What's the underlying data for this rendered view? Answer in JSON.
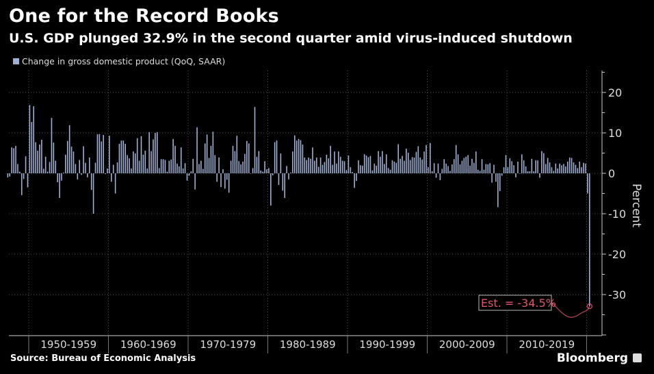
{
  "chart_data": {
    "type": "bar",
    "title": "One for the Record Books",
    "subtitle": "U.S. GDP plunged 32.9% in the second quarter amid virus-induced shutdown",
    "legend": [
      "Change in gross domestic product (QoQ, SAAR)"
    ],
    "legend_placement": "top-left",
    "ylabel": "Percent",
    "ylim": [
      -40,
      25
    ],
    "yticks": [
      "20",
      "10",
      "0",
      "-10",
      "-20",
      "-30"
    ],
    "y_axis_side": "right",
    "grid": true,
    "x_start": "1947Q2",
    "x_frequency": "quarterly",
    "xtick_labels": [
      "1950-1959",
      "1960-1969",
      "1970-1979",
      "1980-1989",
      "1990-1999",
      "2000-2009",
      "2010-2019"
    ],
    "bar_color": "#9fb0d4",
    "annotation": {
      "text": "Est. = -34.5%",
      "color": "#e0566e"
    },
    "values": [
      -1.0,
      -0.8,
      6.4,
      6.2,
      6.8,
      2.3,
      0.4,
      -5.4,
      -1.4,
      4.2,
      -3.5,
      16.9,
      12.7,
      16.6,
      7.7,
      5.6,
      7.1,
      8.3,
      1.1,
      4.1,
      0.4,
      2.8,
      13.7,
      7.6,
      3.1,
      -2.2,
      -6.1,
      -1.8,
      0.2,
      4.6,
      8.0,
      11.9,
      6.6,
      5.4,
      2.3,
      -1.5,
      3.3,
      -0.4,
      6.7,
      2.6,
      -1.0,
      3.9,
      -4.1,
      -10.0,
      2.6,
      9.7,
      9.7,
      7.9,
      9.5,
      -0.2,
      1.2,
      9.3,
      -2.1,
      2.1,
      -5.0,
      2.7,
      7.3,
      8.1,
      8.1,
      7.3,
      4.5,
      3.7,
      1.2,
      5.4,
      4.9,
      8.7,
      3.1,
      9.2,
      4.6,
      5.6,
      1.2,
      10.2,
      5.5,
      8.4,
      10.0,
      10.2,
      1.3,
      3.5,
      3.5,
      3.3,
      0.4,
      3.1,
      3.4,
      8.5,
      6.8,
      2.4,
      1.7,
      6.4,
      1.2,
      2.5,
      -1.8,
      -0.6,
      0.5,
      3.6,
      -4.0,
      11.4,
      2.3,
      3.1,
      1.1,
      7.4,
      9.6,
      3.8,
      6.8,
      10.3,
      4.5,
      -2.1,
      3.9,
      -3.4,
      1.0,
      -3.8,
      -1.6,
      -4.8,
      3.1,
      6.8,
      5.5,
      9.3,
      3.0,
      2.2,
      2.9,
      4.8,
      8.0,
      7.4,
      0.0,
      1.3,
      16.4,
      4.1,
      5.5,
      0.7,
      0.4,
      3.0,
      1.0,
      1.3,
      -8.0,
      -0.5,
      7.7,
      8.1,
      -2.9,
      4.9,
      -4.3,
      -6.1,
      1.8,
      -1.5,
      0.2,
      5.4,
      9.4,
      8.1,
      8.5,
      8.2,
      7.1,
      3.9,
      3.3,
      3.9,
      3.6,
      6.4,
      3.1,
      3.9,
      1.6,
      3.9,
      2.1,
      2.8,
      4.6,
      3.7,
      6.8,
      2.1,
      5.4,
      2.4,
      5.4,
      4.1,
      3.1,
      3.0,
      0.8,
      4.4,
      1.5,
      0.3,
      -3.6,
      -1.9,
      3.2,
      2.0,
      1.9,
      4.7,
      4.4,
      4.0,
      4.3,
      0.7,
      2.4,
      1.9,
      5.5,
      4.1,
      5.5,
      2.3,
      4.7,
      1.3,
      0.9,
      3.2,
      2.9,
      2.6,
      7.2,
      3.6,
      4.3,
      3.1,
      6.1,
      5.1,
      3.3,
      4.0,
      3.9,
      5.3,
      6.7,
      3.9,
      3.4,
      5.4,
      7.0,
      1.5,
      7.5,
      0.5,
      2.5,
      -1.1,
      2.4,
      -1.7,
      1.1,
      3.5,
      2.4,
      1.8,
      0.6,
      2.2,
      3.5,
      7.0,
      4.7,
      2.2,
      3.1,
      3.8,
      4.1,
      4.5,
      1.9,
      3.6,
      2.6,
      5.4,
      0.9,
      0.6,
      3.5,
      0.9,
      2.3,
      2.2,
      2.5,
      -2.3,
      2.1,
      -2.1,
      -8.4,
      -4.4,
      -0.6,
      1.5,
      4.5,
      1.5,
      3.7,
      3.0,
      2.0,
      -1.0,
      2.9,
      -0.1,
      4.7,
      3.2,
      1.7,
      0.5,
      0.5,
      3.6,
      0.5,
      3.2,
      3.2,
      -1.1,
      5.5,
      5.0,
      2.3,
      3.8,
      2.7,
      1.5,
      0.6,
      2.4,
      1.2,
      2.4,
      2.0,
      2.3,
      1.7,
      2.9,
      3.9,
      3.8,
      2.7,
      2.1,
      1.3,
      2.9,
      1.5,
      2.6,
      2.4,
      -5.0,
      -32.9
    ]
  },
  "footer": {
    "source": "Source: Bureau of Economic Analysis",
    "brand": "Bloomberg"
  }
}
